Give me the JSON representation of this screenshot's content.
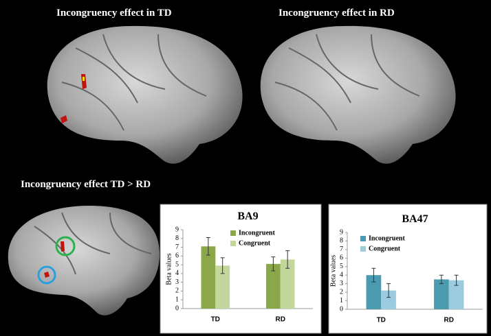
{
  "panels": {
    "top_left": "Incongruency effect in TD",
    "top_right": "Incongruency effect in RD",
    "bottom_left": "Incongruency effect TD > RD"
  },
  "chart_data": [
    {
      "type": "bar",
      "title": "BA9",
      "ylabel": "Beta values",
      "categories": [
        "TD",
        "RD"
      ],
      "series": [
        {
          "name": "Incongruent",
          "color": "#8aa84a",
          "values": [
            7.1,
            5.1
          ],
          "errors": [
            1.0,
            0.8
          ]
        },
        {
          "name": "Congruent",
          "color": "#c3d69b",
          "values": [
            4.9,
            5.6
          ],
          "errors": [
            0.9,
            1.0
          ]
        }
      ],
      "ylim": [
        0,
        9
      ],
      "yticks": [
        0,
        1,
        2,
        3,
        4,
        5,
        6,
        7,
        8,
        9
      ]
    },
    {
      "type": "bar",
      "title": "BA47",
      "ylabel": "Beta values",
      "categories": [
        "TD",
        "RD"
      ],
      "series": [
        {
          "name": "Incongruent",
          "color": "#4a9ab0",
          "values": [
            4.0,
            3.5
          ],
          "errors": [
            0.8,
            0.5
          ]
        },
        {
          "name": "Congruent",
          "color": "#9ccbdf",
          "values": [
            2.2,
            3.4
          ],
          "errors": [
            0.8,
            0.6
          ]
        }
      ],
      "ylim": [
        0,
        9
      ],
      "yticks": [
        0,
        1,
        2,
        3,
        4,
        5,
        6,
        7,
        8,
        9
      ]
    }
  ]
}
